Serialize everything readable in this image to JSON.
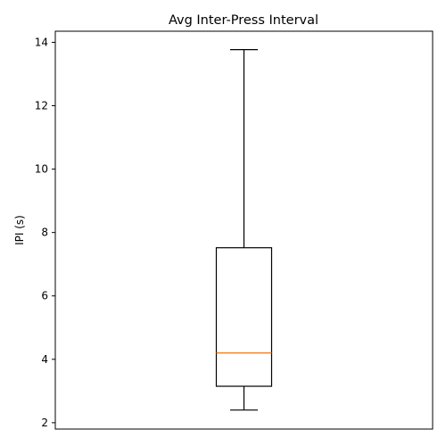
{
  "chart_data": {
    "type": "box",
    "title": "Avg Inter-Press Interval",
    "xlabel": "",
    "ylabel": "IPI (s)",
    "ylim": [
      1.8,
      14.35
    ],
    "yticks": [
      2,
      4,
      6,
      8,
      10,
      12,
      14
    ],
    "grid": false,
    "boxes": [
      {
        "whisker_low": 2.4,
        "q1": 3.15,
        "median": 4.2,
        "q3": 7.52,
        "whisker_high": 13.77
      }
    ],
    "colors": {
      "box": "#000000",
      "median": "#ff7f0e",
      "whisker": "#000000",
      "axes": "#000000"
    }
  }
}
